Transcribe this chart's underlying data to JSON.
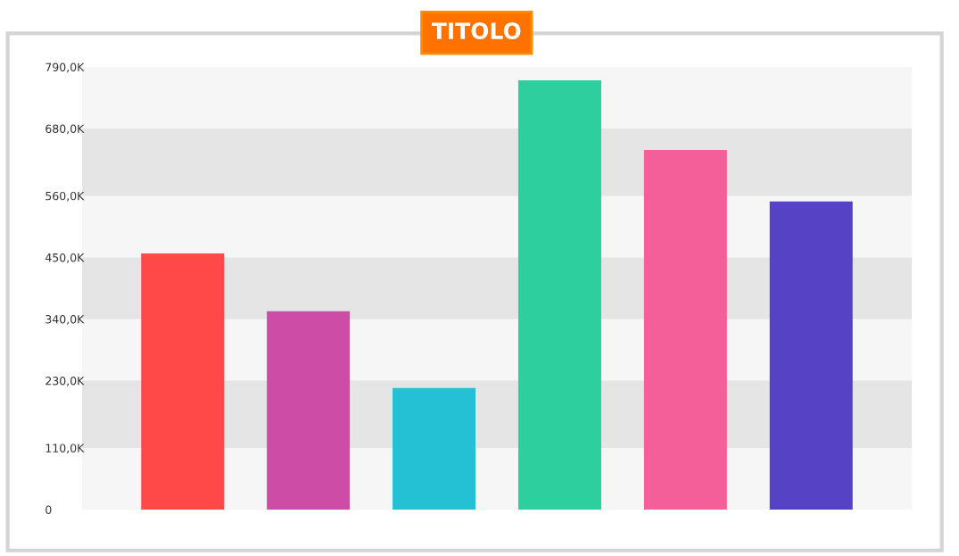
{
  "chart_data": {
    "type": "bar",
    "title": "TITOLO",
    "categories": [
      null,
      null,
      null,
      null,
      null,
      null
    ],
    "values": [
      457,
      354,
      217,
      766,
      642,
      550
    ],
    "colors": [
      "#ff4848",
      "#cc4ca6",
      "#24c0d4",
      "#2ecf9e",
      "#f45f99",
      "#5542c4"
    ],
    "ylim": [
      0,
      790
    ],
    "yticks": [
      0,
      {
        "value": 110,
        "label": "110,0K"
      },
      {
        "value": 230,
        "label": "230,0K"
      },
      {
        "value": 340,
        "label": "340,0K"
      },
      {
        "value": 450,
        "label": "450,0K"
      },
      {
        "value": 560,
        "label": "560,0K"
      },
      {
        "value": 680,
        "label": "680,0K"
      },
      {
        "value": 790,
        "label": "790,0K"
      }
    ],
    "bands": [
      {
        "axis": "y",
        "from": 110,
        "to": 230,
        "color": "#e5e5e5"
      },
      {
        "axis": "y",
        "from": 340,
        "to": 450,
        "color": "#e5e5e5"
      },
      {
        "axis": "y",
        "from": 560,
        "to": 680,
        "color": "#e5e5e5"
      }
    ],
    "grid": false
  }
}
